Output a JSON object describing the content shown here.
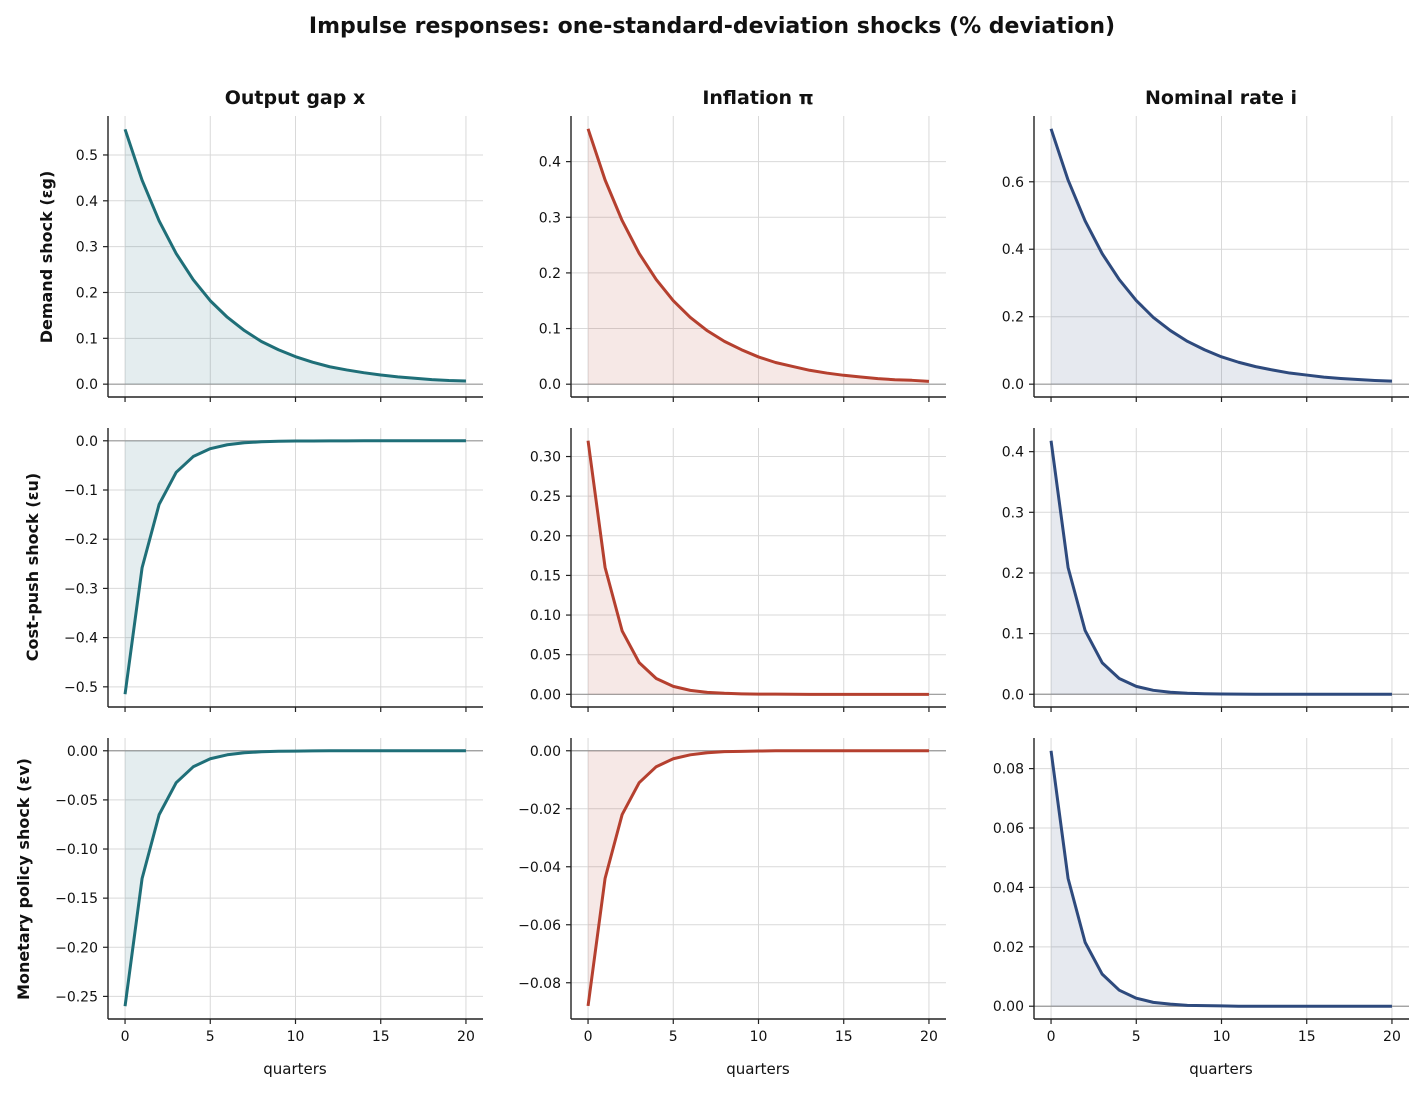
{
  "figure": {
    "title": "Impulse responses: one-standard-deviation shocks (% deviation)"
  },
  "columns": [
    {
      "title": "Output gap  x",
      "color": "#1f6f78"
    },
    {
      "title": "Inflation  π",
      "color": "#b5402f"
    },
    {
      "title": "Nominal rate  i",
      "color": "#2e4a7d"
    }
  ],
  "rows": [
    {
      "label": "Demand shock (εg)"
    },
    {
      "label": "Cost-push shock (εu)"
    },
    {
      "label": "Monetary policy shock (εv)"
    }
  ],
  "xlabel": "quarters",
  "colors": {
    "grid": "#d9d9d9",
    "zero_line": "#999999",
    "axis": "#222222"
  },
  "chart_data": [
    {
      "type": "area",
      "row": 0,
      "col": 0,
      "series": [
        {
          "values": [
            0.556,
            0.445,
            0.356,
            0.285,
            0.228,
            0.182,
            0.146,
            0.117,
            0.093,
            0.075,
            0.06,
            0.048,
            0.038,
            0.031,
            0.025,
            0.02,
            0.016,
            0.013,
            0.01,
            0.008,
            0.007
          ]
        }
      ],
      "x": [
        0,
        1,
        2,
        3,
        4,
        5,
        6,
        7,
        8,
        9,
        10,
        11,
        12,
        13,
        14,
        15,
        16,
        17,
        18,
        19,
        20
      ],
      "xlim": [
        -1,
        21
      ],
      "ylim": [
        -0.028,
        0.585
      ],
      "xticks": [
        "0",
        "5",
        "10",
        "15",
        "20"
      ],
      "yticks": [
        "0.0",
        "0.1",
        "0.2",
        "0.3",
        "0.4",
        "0.5"
      ],
      "grid": true
    },
    {
      "type": "area",
      "row": 0,
      "col": 1,
      "series": [
        {
          "values": [
            0.459,
            0.367,
            0.294,
            0.235,
            0.188,
            0.15,
            0.12,
            0.096,
            0.077,
            0.062,
            0.049,
            0.039,
            0.032,
            0.025,
            0.02,
            0.016,
            0.013,
            0.01,
            0.008,
            0.007,
            0.005
          ]
        }
      ],
      "x": [
        0,
        1,
        2,
        3,
        4,
        5,
        6,
        7,
        8,
        9,
        10,
        11,
        12,
        13,
        14,
        15,
        16,
        17,
        18,
        19,
        20
      ],
      "xlim": [
        -1,
        21
      ],
      "ylim": [
        -0.023,
        0.482
      ],
      "xticks": [
        "0",
        "5",
        "10",
        "15",
        "20"
      ],
      "yticks": [
        "0.0",
        "0.1",
        "0.2",
        "0.3",
        "0.4"
      ],
      "grid": true
    },
    {
      "type": "area",
      "row": 0,
      "col": 2,
      "series": [
        {
          "values": [
            0.757,
            0.605,
            0.484,
            0.387,
            0.31,
            0.248,
            0.198,
            0.159,
            0.127,
            0.102,
            0.081,
            0.065,
            0.052,
            0.042,
            0.033,
            0.027,
            0.021,
            0.017,
            0.014,
            0.011,
            0.009
          ]
        }
      ],
      "x": [
        0,
        1,
        2,
        3,
        4,
        5,
        6,
        7,
        8,
        9,
        10,
        11,
        12,
        13,
        14,
        15,
        16,
        17,
        18,
        19,
        20
      ],
      "xlim": [
        -1,
        21
      ],
      "ylim": [
        -0.038,
        0.795
      ],
      "xticks": [
        "0",
        "5",
        "10",
        "15",
        "20"
      ],
      "yticks": [
        "0.0",
        "0.2",
        "0.4",
        "0.6"
      ],
      "grid": true
    },
    {
      "type": "area",
      "row": 1,
      "col": 0,
      "series": [
        {
          "values": [
            -0.515,
            -0.258,
            -0.129,
            -0.064,
            -0.032,
            -0.016,
            -0.008,
            -0.004,
            -0.002,
            -0.001,
            -0.0005,
            -0.0003,
            -0.0001,
            -0.0001,
            0,
            0,
            0,
            0,
            0,
            0,
            0
          ]
        }
      ],
      "x": [
        0,
        1,
        2,
        3,
        4,
        5,
        6,
        7,
        8,
        9,
        10,
        11,
        12,
        13,
        14,
        15,
        16,
        17,
        18,
        19,
        20
      ],
      "xlim": [
        -1,
        21
      ],
      "ylim": [
        -0.541,
        0.026
      ],
      "xticks": [
        "0",
        "5",
        "10",
        "15",
        "20"
      ],
      "yticks": [
        "0.0",
        "−0.1",
        "−0.2",
        "−0.3",
        "−0.4",
        "−0.5"
      ],
      "grid": true
    },
    {
      "type": "area",
      "row": 1,
      "col": 1,
      "series": [
        {
          "values": [
            0.32,
            0.16,
            0.08,
            0.04,
            0.02,
            0.01,
            0.005,
            0.0025,
            0.0013,
            0.0006,
            0.0003,
            0.0002,
            0.0001,
            0,
            0,
            0,
            0,
            0,
            0,
            0,
            0
          ]
        }
      ],
      "x": [
        0,
        1,
        2,
        3,
        4,
        5,
        6,
        7,
        8,
        9,
        10,
        11,
        12,
        13,
        14,
        15,
        16,
        17,
        18,
        19,
        20
      ],
      "xlim": [
        -1,
        21
      ],
      "ylim": [
        -0.016,
        0.336
      ],
      "xticks": [
        "0",
        "5",
        "10",
        "15",
        "20"
      ],
      "yticks": [
        "0.00",
        "0.05",
        "0.10",
        "0.15",
        "0.20",
        "0.25",
        "0.30"
      ],
      "grid": true
    },
    {
      "type": "area",
      "row": 1,
      "col": 2,
      "series": [
        {
          "values": [
            0.418,
            0.209,
            0.105,
            0.052,
            0.026,
            0.013,
            0.0065,
            0.0033,
            0.0016,
            0.0008,
            0.0004,
            0.0002,
            0.0001,
            0,
            0,
            0,
            0,
            0,
            0,
            0,
            0
          ]
        }
      ],
      "x": [
        0,
        1,
        2,
        3,
        4,
        5,
        6,
        7,
        8,
        9,
        10,
        11,
        12,
        13,
        14,
        15,
        16,
        17,
        18,
        19,
        20
      ],
      "xlim": [
        -1,
        21
      ],
      "ylim": [
        -0.021,
        0.439
      ],
      "xticks": [
        "0",
        "5",
        "10",
        "15",
        "20"
      ],
      "yticks": [
        "0.0",
        "0.1",
        "0.2",
        "0.3",
        "0.4"
      ],
      "grid": true
    },
    {
      "type": "area",
      "row": 2,
      "col": 0,
      "series": [
        {
          "values": [
            -0.26,
            -0.13,
            -0.065,
            -0.0325,
            -0.0163,
            -0.0081,
            -0.0041,
            -0.002,
            -0.001,
            -0.0005,
            -0.0003,
            -0.0001,
            0,
            0,
            0,
            0,
            0,
            0,
            0,
            0,
            0
          ]
        }
      ],
      "x": [
        0,
        1,
        2,
        3,
        4,
        5,
        6,
        7,
        8,
        9,
        10,
        11,
        12,
        13,
        14,
        15,
        16,
        17,
        18,
        19,
        20
      ],
      "xlim": [
        -1,
        21
      ],
      "ylim": [
        -0.273,
        0.013
      ],
      "xticks": [
        "0",
        "5",
        "10",
        "15",
        "20"
      ],
      "yticks": [
        "0.00",
        "−0.05",
        "−0.10",
        "−0.15",
        "−0.20",
        "−0.25"
      ],
      "grid": true
    },
    {
      "type": "area",
      "row": 2,
      "col": 1,
      "series": [
        {
          "values": [
            -0.088,
            -0.044,
            -0.022,
            -0.011,
            -0.0055,
            -0.00275,
            -0.0014,
            -0.0007,
            -0.0003,
            -0.0002,
            -0.0001,
            0,
            0,
            0,
            0,
            0,
            0,
            0,
            0,
            0,
            0
          ]
        }
      ],
      "x": [
        0,
        1,
        2,
        3,
        4,
        5,
        6,
        7,
        8,
        9,
        10,
        11,
        12,
        13,
        14,
        15,
        16,
        17,
        18,
        19,
        20
      ],
      "xlim": [
        -1,
        21
      ],
      "ylim": [
        -0.0925,
        0.0044
      ],
      "xticks": [
        "0",
        "5",
        "10",
        "15",
        "20"
      ],
      "yticks": [
        "0.00",
        "−0.02",
        "−0.04",
        "−0.06",
        "−0.08"
      ],
      "grid": true
    },
    {
      "type": "area",
      "row": 2,
      "col": 2,
      "series": [
        {
          "values": [
            0.086,
            0.043,
            0.0215,
            0.0108,
            0.0054,
            0.0027,
            0.0013,
            0.0007,
            0.0003,
            0.0002,
            0.0001,
            0,
            0,
            0,
            0,
            0,
            0,
            0,
            0,
            0,
            0
          ]
        }
      ],
      "x": [
        0,
        1,
        2,
        3,
        4,
        5,
        6,
        7,
        8,
        9,
        10,
        11,
        12,
        13,
        14,
        15,
        16,
        17,
        18,
        19,
        20
      ],
      "xlim": [
        -1,
        21
      ],
      "ylim": [
        -0.0043,
        0.0903
      ],
      "xticks": [
        "0",
        "5",
        "10",
        "15",
        "20"
      ],
      "yticks": [
        "0.00",
        "0.02",
        "0.04",
        "0.06",
        "0.08"
      ],
      "grid": true
    }
  ]
}
